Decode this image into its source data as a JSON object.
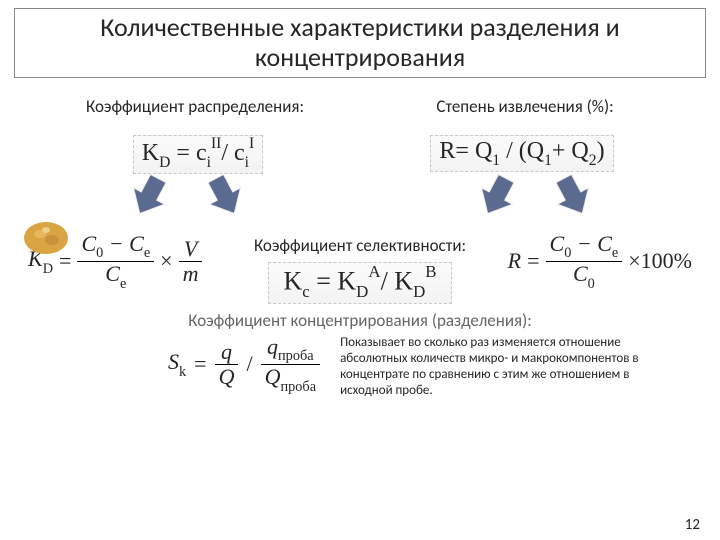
{
  "title": "Количественные характеристики разделения и концентрирования",
  "left": {
    "label": "Коэффициент распределения:",
    "formula_html": "K<span class='sub'>D</span> = c<span class='sub'>i</span><span class='sup'>II</span>/ c<span class='sub'>i</span><span class='sup'>I</span>"
  },
  "right": {
    "label": "Степень извлечения (%):",
    "formula_html": "R= Q<span class='sub'>1</span> / (Q<span class='sub'>1</span>+ Q<span class='sub'>2</span>)"
  },
  "center": {
    "label": "Коэффициент селективности:",
    "formula_html": "K<span class='sub'>c</span> = K<span class='sub'>D</span><span class='sup'>A</span>/ K<span class='sub'>D</span><span class='sup'>B</span>"
  },
  "concentration_label": "Коэффициент концентрирования (разделения):",
  "description": "Показывает во сколько раз изменяется отношение абсолютных количеств микро- и макрокомпонентов в концентрате по сравнению с этим же отношением в исходной пробе.",
  "page": "12",
  "colors": {
    "arrow_fill": "#5b6a8f",
    "arrow_stroke": "#f2f2f2",
    "nugget": "#d9a441"
  }
}
